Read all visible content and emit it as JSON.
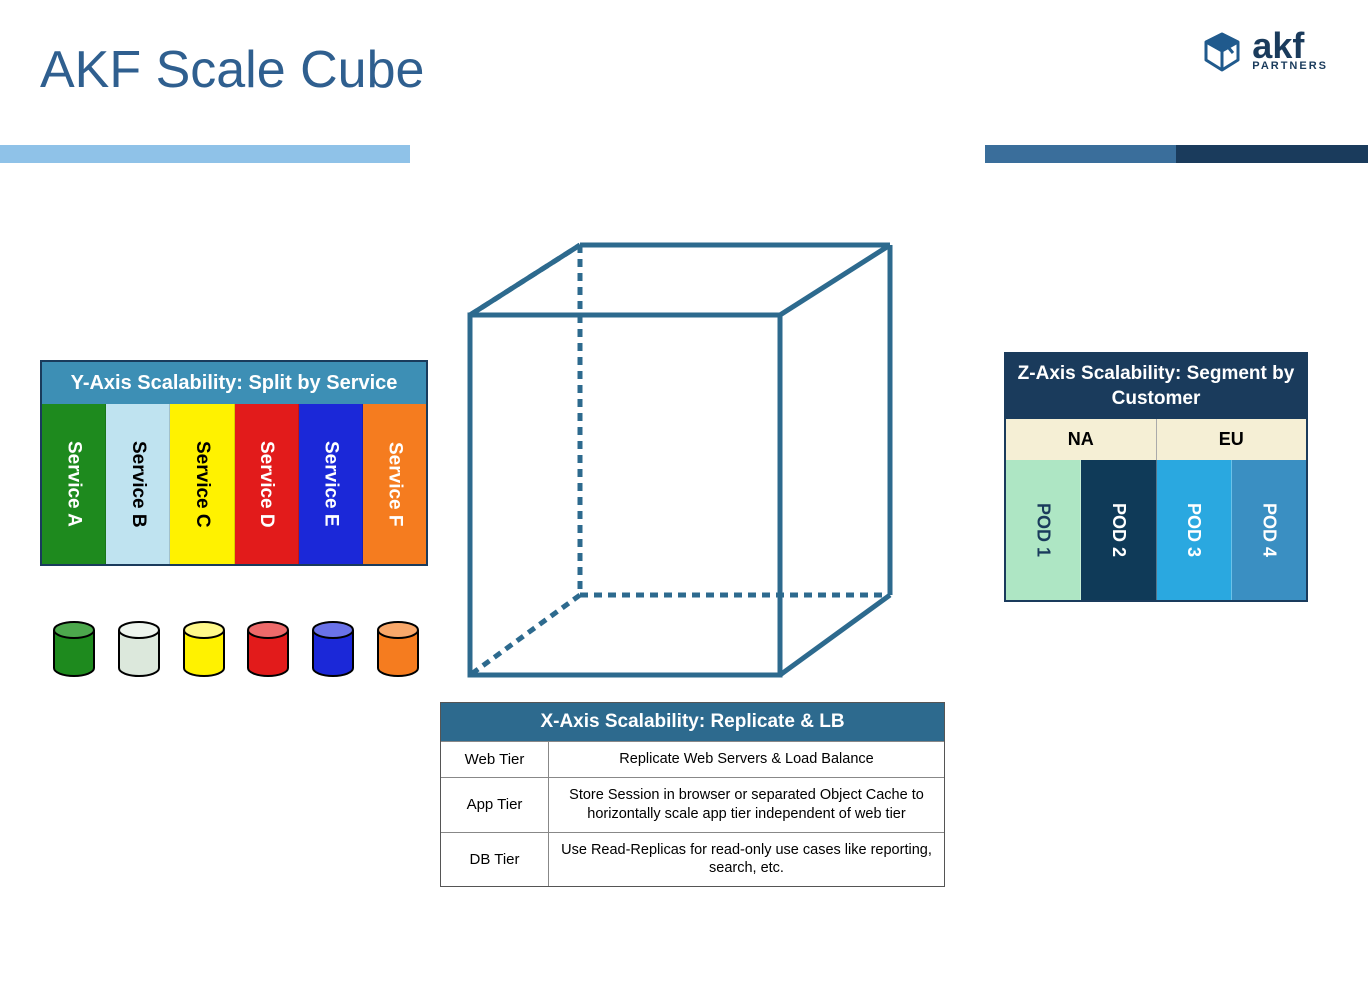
{
  "title": "AKF Scale Cube",
  "logo": {
    "brand": "akf",
    "subtitle": "PARTNERS",
    "icon_color": "#205a8d"
  },
  "divider": {
    "segments": [
      {
        "color": "#8fc2e8",
        "width_pct": 30
      },
      {
        "color": "#ffffff",
        "width_pct": 42
      },
      {
        "color": "#3a6e9b",
        "width_pct": 14
      },
      {
        "color": "#1a3b5c",
        "width_pct": 14
      }
    ]
  },
  "cube": {
    "stroke": "#2d6a8e",
    "stroke_width": 5,
    "dash": "8,6"
  },
  "y_axis": {
    "header": "Y-Axis Scalability: Split by Service",
    "header_bg": "#3d8fb5",
    "services": [
      {
        "label": "Service A",
        "bg": "#1e8a1e",
        "fg": "#ffffff"
      },
      {
        "label": "Service B",
        "bg": "#bfe3f0",
        "fg": "#000000"
      },
      {
        "label": "Service C",
        "bg": "#fff200",
        "fg": "#000000"
      },
      {
        "label": "Service D",
        "bg": "#e21b1b",
        "fg": "#ffffff"
      },
      {
        "label": "Service E",
        "bg": "#1b28d8",
        "fg": "#ffffff"
      },
      {
        "label": "Service F",
        "bg": "#f57c1f",
        "fg": "#ffffff"
      }
    ],
    "cylinders": [
      {
        "fill": "#1e8a1e",
        "top": "#4ca84c"
      },
      {
        "fill": "#dce8dc",
        "top": "#eef5ee"
      },
      {
        "fill": "#fff200",
        "top": "#fff98a"
      },
      {
        "fill": "#e21b1b",
        "top": "#ee6a6a"
      },
      {
        "fill": "#1b28d8",
        "top": "#6a72e8"
      },
      {
        "fill": "#f57c1f",
        "top": "#f9a86a"
      }
    ]
  },
  "x_axis": {
    "header": "X-Axis Scalability: Replicate & LB",
    "header_bg": "#2d6a8e",
    "rows": [
      {
        "label": "Web Tier",
        "desc": "Replicate Web Servers & Load Balance"
      },
      {
        "label": "App Tier",
        "desc": "Store Session in browser or separated Object Cache to horizontally scale app tier independent of web tier"
      },
      {
        "label": "DB Tier",
        "desc": "Use Read-Replicas for read-only use cases like reporting, search, etc."
      }
    ]
  },
  "z_axis": {
    "header": "Z-Axis Scalability: Segment by Customer",
    "header_bg": "#1a3b5c",
    "region_bg": "#f5efd5",
    "regions": [
      "NA",
      "EU"
    ],
    "pods": [
      {
        "label": "POD 1",
        "bg": "#aee6c4",
        "fg": "#1a3b5c"
      },
      {
        "label": "POD 2",
        "bg": "#0f3a58",
        "fg": "#ffffff"
      },
      {
        "label": "POD 3",
        "bg": "#2aa8e0",
        "fg": "#ffffff"
      },
      {
        "label": "POD 4",
        "bg": "#3a8fc2",
        "fg": "#ffffff"
      }
    ]
  }
}
